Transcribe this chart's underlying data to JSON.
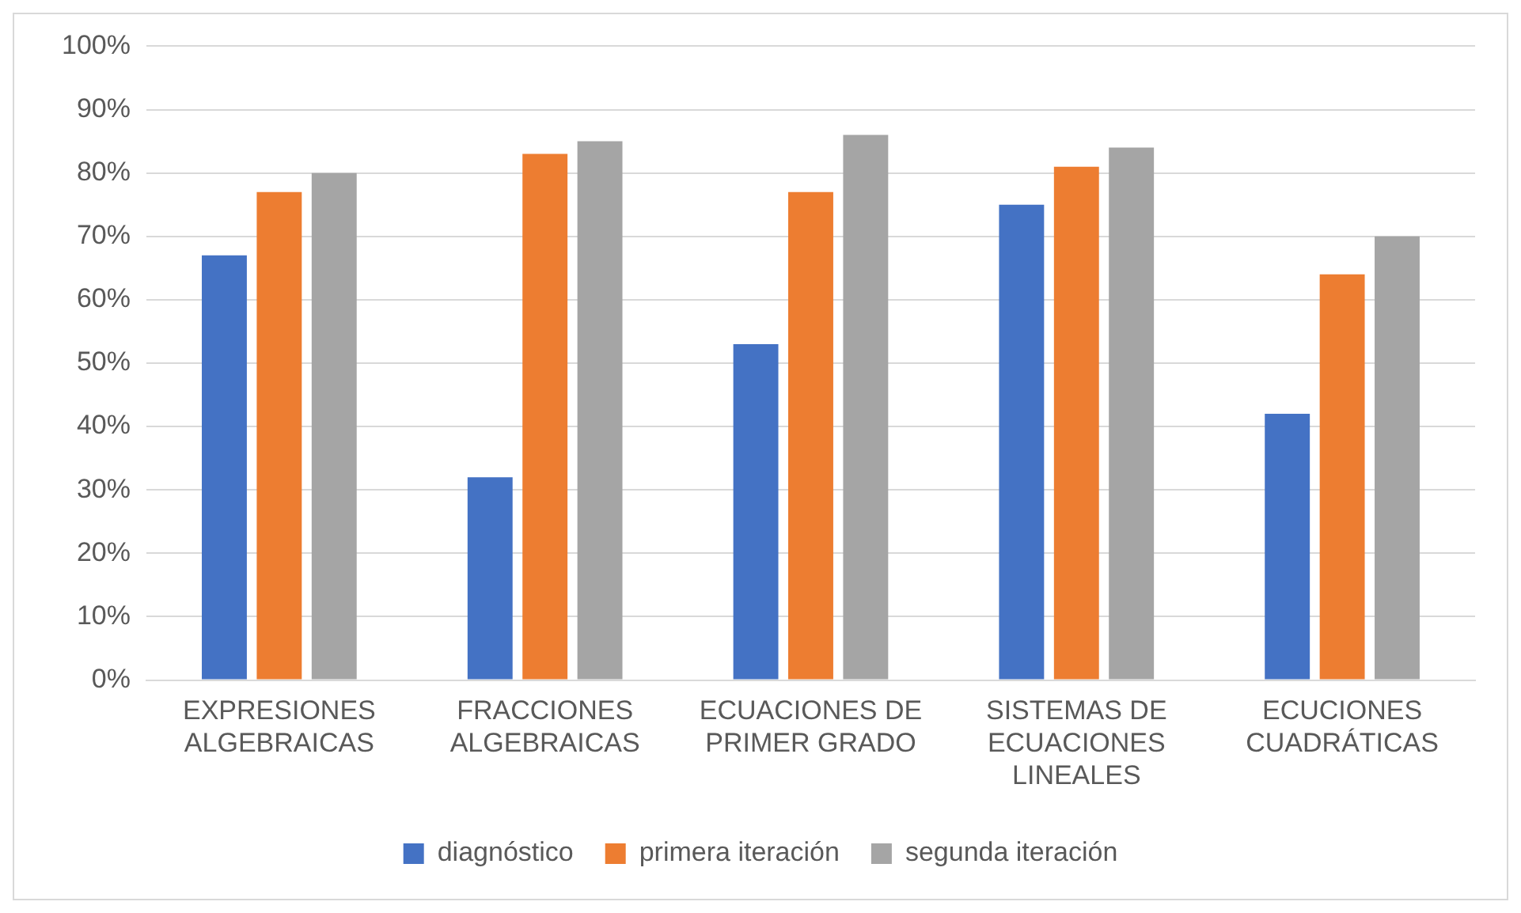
{
  "chart_data": {
    "type": "bar",
    "categories": [
      "EXPRESIONES ALGEBRAICAS",
      "FRACCIONES ALGEBRAICAS",
      "ECUACIONES DE PRIMER GRADO",
      "SISTEMAS DE ECUACIONES LINEALES",
      "ECUCIONES CUADRÁTICAS"
    ],
    "series": [
      {
        "name": "diagnóstico",
        "color": "#4472c4",
        "values": [
          67,
          32,
          53,
          75,
          42
        ]
      },
      {
        "name": "primera iteración",
        "color": "#ed7d31",
        "values": [
          77,
          83,
          77,
          81,
          64
        ]
      },
      {
        "name": "segunda iteración",
        "color": "#a5a5a5",
        "values": [
          80,
          85,
          86,
          84,
          70
        ]
      }
    ],
    "ylim": [
      0,
      100
    ],
    "yticks": [
      {
        "value": 0,
        "label": "0%"
      },
      {
        "value": 10,
        "label": "10%"
      },
      {
        "value": 20,
        "label": "20%"
      },
      {
        "value": 30,
        "label": "30%"
      },
      {
        "value": 40,
        "label": "40%"
      },
      {
        "value": 50,
        "label": "50%"
      },
      {
        "value": 60,
        "label": "60%"
      },
      {
        "value": 70,
        "label": "70%"
      },
      {
        "value": 80,
        "label": "80%"
      },
      {
        "value": 90,
        "label": "90%"
      },
      {
        "value": 100,
        "label": "100%"
      }
    ],
    "grid": "y",
    "legend": "bottom"
  }
}
